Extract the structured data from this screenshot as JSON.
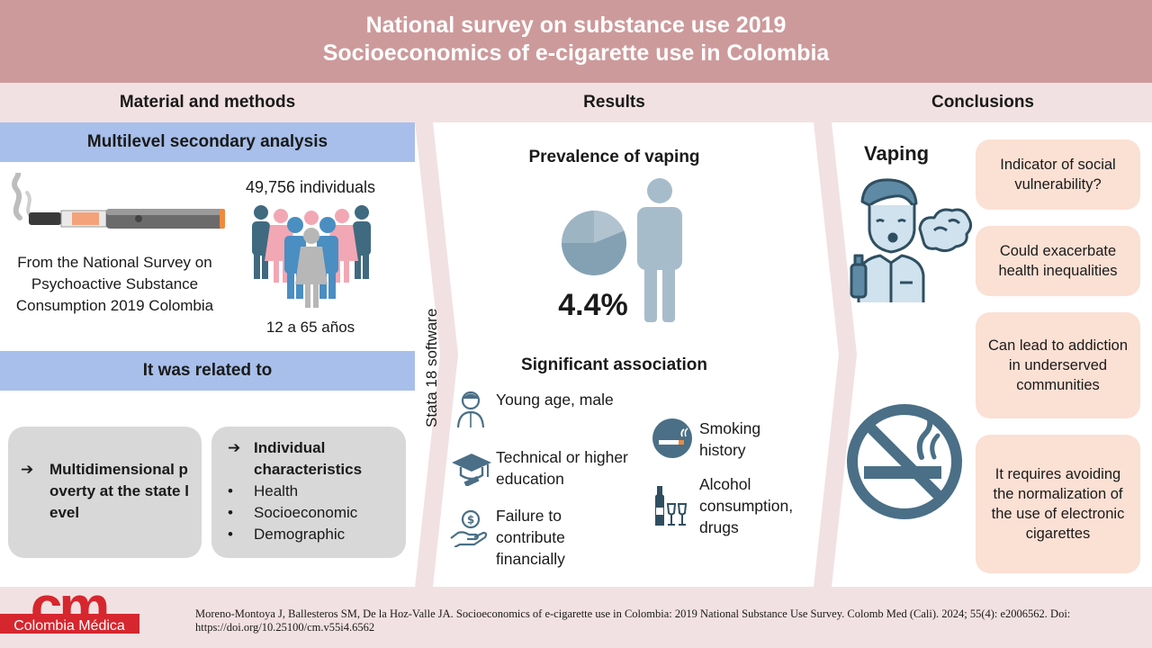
{
  "header": {
    "title_line1": "National survey on substance use 2019",
    "title_line2": "Socioeconomics of e-cigarette use in Colombia"
  },
  "columns": {
    "methods": "Material and methods",
    "results": "Results",
    "conclusions": "Conclusions"
  },
  "methods": {
    "band1": "Multilevel secondary analysis",
    "source_text": "From the National Survey on Psychoactive Substance Consumption 2019 Colombia",
    "individuals": "49,756 individuals",
    "age_range": "12 a 65 años",
    "band2": "It was related to",
    "box1_label": "Multidimensional poverty at the state level",
    "box2_title": "Individual characteristics",
    "box2_items": [
      "Health",
      "Socioeconomic",
      "Demographic"
    ],
    "arrow_glyph": "➔",
    "bullet_glyph": "•"
  },
  "software": "Stata 18 software",
  "results": {
    "prevalence_title": "Prevalence of vaping",
    "prevalence_value": "4.4%",
    "association_title": "Significant association",
    "associations": {
      "age": "Young age, male",
      "education": "Technical or higher education",
      "financial": "Failure to contribute financially",
      "smoking": "Smoking history",
      "alcohol": "Alcohol consumption, drugs"
    }
  },
  "conclusions": {
    "vaping_label": "Vaping",
    "boxes": [
      "Indicator of social vulnerability?",
      "Could exacerbate health inequalities",
      "Can lead to addiction in underserved communities",
      "It requires avoiding the normalization of the use of electronic cigarettes"
    ]
  },
  "footer": {
    "logo_text": "Colombia Médica",
    "logo_letters": "cm",
    "citation": "Moreno-Montoya J, Ballesteros SM, De la Hoz-Valle JA. Socioeconomics of e-cigarette use in Colombia: 2019 National Substance Use Survey. Colomb Med (Cali). 2024; 55(4): e2006562. Doi: https://doi.org/10.25100/cm.v55i4.6562"
  },
  "colors": {
    "header": "#cd9a9b",
    "subheader": "#f2e1e2",
    "band": "#a7bfea",
    "grey_box": "#d8d8d8",
    "pink_box": "#fbe0d4",
    "icon_blue": "#4a6f86",
    "figure_blue": "#9db4c3",
    "logo_red": "#d6262e"
  }
}
